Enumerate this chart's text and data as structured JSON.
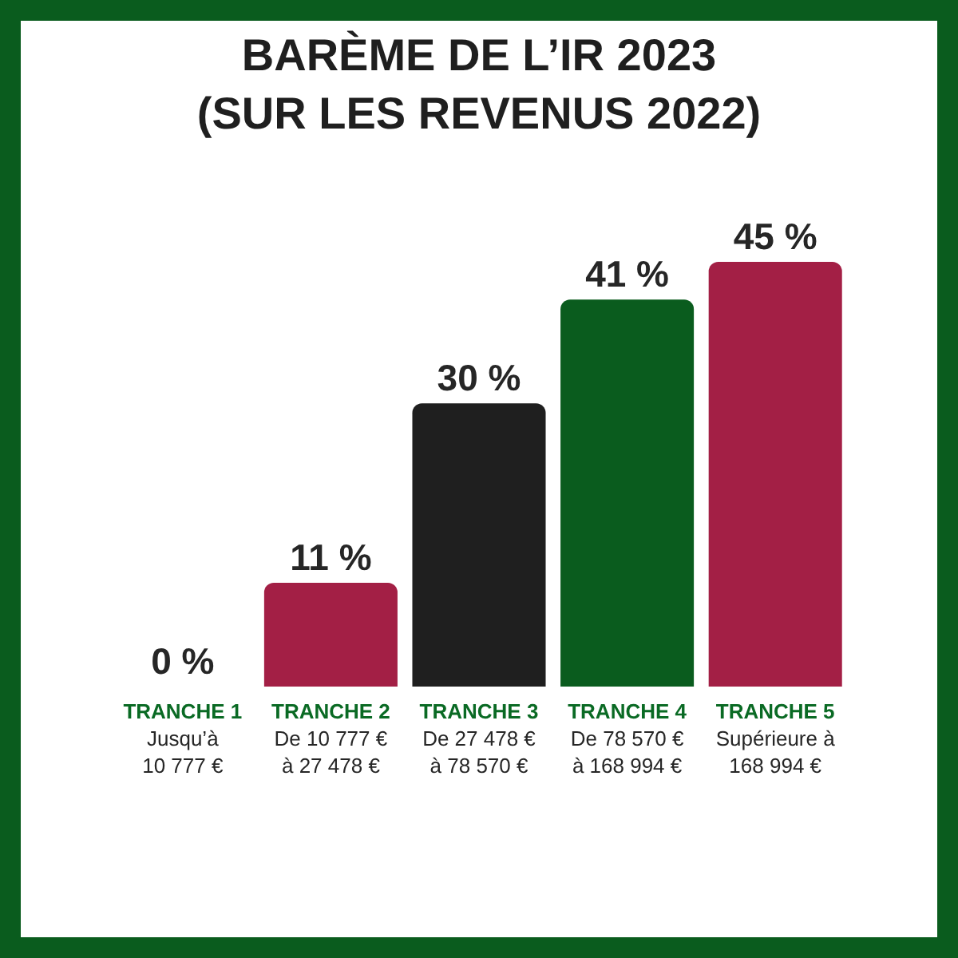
{
  "chart_data": {
    "type": "bar",
    "title": "BARÈME DE L’IR 2023\n(SUR LES REVENUS 2022)",
    "categories": [
      "TRANCHE 1\nJusqu’à\n10 777 €",
      "TRANCHE 2\nDe 10 777 €\nà 27 478 €",
      "TRANCHE 3\nDe 27 478 €\nà 78 570 €",
      "TRANCHE 4\nDe 78 570 €\nà 168 994 €",
      "TRANCHE 5\nSupérieure à\n168 994 €"
    ],
    "values": [
      0,
      11,
      30,
      41,
      45
    ],
    "colors": [
      "#0a5c1e",
      "#a31f45",
      "#1f1f1f",
      "#0a5c1e",
      "#a31f45"
    ],
    "value_labels": [
      "0 %",
      "11 %",
      "30 %",
      "41 %",
      "45 %"
    ],
    "tick_labels": "x"
  }
}
